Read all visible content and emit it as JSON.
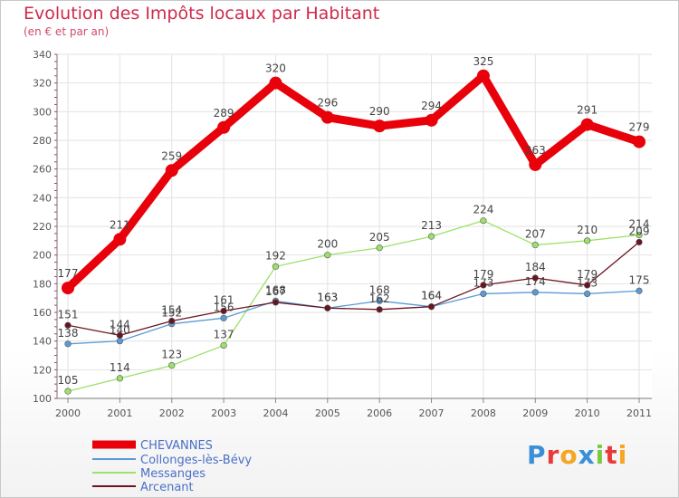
{
  "chart_data": {
    "type": "line",
    "title": "Evolution des Impôts locaux par Habitant",
    "subtitle": "(en € et par an)",
    "x": [
      "2000",
      "2001",
      "2002",
      "2003",
      "2004",
      "2005",
      "2006",
      "2007",
      "2008",
      "2009",
      "2010",
      "2011"
    ],
    "ylim": [
      100,
      340
    ],
    "yticks": [
      100,
      120,
      140,
      160,
      180,
      200,
      220,
      240,
      260,
      280,
      300,
      320,
      340
    ],
    "series": [
      {
        "name": "CHEVANNES",
        "color": "#e8000a",
        "values": [
          177,
          211,
          259,
          289,
          320,
          296,
          290,
          294,
          325,
          263,
          291,
          279
        ]
      },
      {
        "name": "Collonges-lès-Bévy",
        "color": "#5b9bd5",
        "values": [
          138,
          140,
          152,
          156,
          168,
          163,
          168,
          164,
          173,
          174,
          173,
          175
        ]
      },
      {
        "name": "Messanges",
        "color": "#9be26a",
        "values": [
          105,
          114,
          123,
          137,
          192,
          200,
          205,
          213,
          224,
          207,
          210,
          214
        ]
      },
      {
        "name": "Arcenant",
        "color": "#6b1420",
        "values": [
          151,
          144,
          154,
          161,
          167,
          163,
          162,
          164,
          179,
          184,
          179,
          209
        ]
      }
    ]
  },
  "logo_text": "Proxiti"
}
